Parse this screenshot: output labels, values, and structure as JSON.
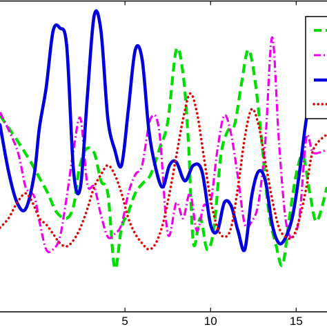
{
  "chart_data": {
    "type": "line",
    "xlim": [
      -2.3,
      16.8
    ],
    "ylim": [
      0,
      1
    ],
    "grid": false,
    "legend_position": "top-right",
    "x_ticks": [
      {
        "value": 5,
        "label": "5"
      },
      {
        "value": 10,
        "label": "10"
      },
      {
        "value": 15,
        "label": "15"
      }
    ],
    "series": [
      {
        "style": "dashed",
        "color": "#00dd00",
        "x": [
          -2.3,
          -1.3,
          -0.5,
          0,
          0.5,
          1,
          1.6,
          2,
          2.3,
          2.7,
          3.2,
          3.6,
          4,
          4.4,
          4.8,
          5.2,
          5.6,
          6,
          6.5,
          7,
          7.5,
          8,
          8.4,
          8.7,
          9,
          9.4,
          9.8,
          10.2,
          10.6,
          11,
          11.4,
          11.8,
          12.2,
          12.6,
          13,
          13.4,
          13.8,
          14.2,
          14.6,
          15,
          15.4,
          15.8,
          16.2,
          16.8
        ],
        "y": [
          0.63,
          0.55,
          0.48,
          0.43,
          0.38,
          0.32,
          0.3,
          0.34,
          0.45,
          0.52,
          0.51,
          0.42,
          0.38,
          0.14,
          0.27,
          0.32,
          0.38,
          0.41,
          0.44,
          0.52,
          0.61,
          0.84,
          0.76,
          0.55,
          0.22,
          0.3,
          0.2,
          0.27,
          0.5,
          0.58,
          0.6,
          0.73,
          0.84,
          0.74,
          0.54,
          0.32,
          0.22,
          0.15,
          0.3,
          0.44,
          0.5,
          0.38,
          0.29,
          0.4
        ]
      },
      {
        "style": "dash-dot",
        "color": "#ee00ee",
        "x": [
          -2.3,
          -1.3,
          -0.8,
          -0.3,
          0,
          0.4,
          0.8,
          1.2,
          1.6,
          2,
          2.4,
          2.8,
          3.2,
          3.6,
          4,
          4.4,
          4.8,
          5.2,
          5.6,
          6,
          6.5,
          7,
          7.5,
          8,
          8.4,
          8.8,
          9.2,
          9.6,
          10,
          10.4,
          10.8,
          11.2,
          11.6,
          12,
          12.4,
          12.8,
          13.2,
          13.6,
          14,
          14.4,
          14.8,
          15.2,
          15.6,
          16,
          16.8
        ],
        "y": [
          0.64,
          0.52,
          0.4,
          0.37,
          0.29,
          0.2,
          0.2,
          0.24,
          0.37,
          0.52,
          0.62,
          0.41,
          0.4,
          0.31,
          0.24,
          0.25,
          0.28,
          0.38,
          0.44,
          0.47,
          0.62,
          0.58,
          0.25,
          0.35,
          0.3,
          0.38,
          0.26,
          0.34,
          0.35,
          0.52,
          0.63,
          0.57,
          0.43,
          0.28,
          0.29,
          0.35,
          0.55,
          0.88,
          0.54,
          0.29,
          0.24,
          0.31,
          0.56,
          0.51,
          0.52
        ]
      },
      {
        "style": "solid",
        "color": "#0000dd",
        "x": [
          -2.3,
          -1.8,
          -1.3,
          -0.8,
          -0.3,
          0,
          0.4,
          0.8,
          1.2,
          1.6,
          2.0,
          2.4,
          2.8,
          3.2,
          3.6,
          4.0,
          4.4,
          4.8,
          5.2,
          5.6,
          6.0,
          6.4,
          6.8,
          7.2,
          7.6,
          8,
          8.5,
          9,
          9.5,
          10,
          10.4,
          10.8,
          11.2,
          11.6,
          12,
          12.4,
          12.8,
          13.2,
          13.6,
          14,
          14.4,
          14.8,
          15.2,
          15.6,
          16,
          16.8
        ],
        "y": [
          0.6,
          0.45,
          0.35,
          0.33,
          0.44,
          0.59,
          0.72,
          0.9,
          0.91,
          0.85,
          0.45,
          0.4,
          0.69,
          0.95,
          0.9,
          0.62,
          0.52,
          0.47,
          0.65,
          0.84,
          0.81,
          0.58,
          0.46,
          0.4,
          0.47,
          0.48,
          0.42,
          0.47,
          0.45,
          0.28,
          0.26,
          0.35,
          0.34,
          0.26,
          0.2,
          0.37,
          0.45,
          0.42,
          0.28,
          0.22,
          0.24,
          0.31,
          0.45,
          0.62,
          0.71,
          0.8
        ]
      },
      {
        "style": "dotted",
        "color": "#dd0000",
        "x": [
          -2.3,
          -1.8,
          -1.3,
          -0.8,
          -0.4,
          0,
          0.4,
          0.8,
          1.2,
          1.6,
          2.0,
          2.4,
          2.8,
          3.2,
          3.6,
          4.0,
          4.4,
          4.8,
          5.2,
          5.6,
          6,
          6.4,
          6.8,
          7.2,
          7.6,
          8,
          8.4,
          8.8,
          9.2,
          9.6,
          10,
          10.4,
          10.8,
          11.2,
          11.6,
          12,
          12.4,
          12.8,
          13.2,
          13.6,
          14,
          14.4,
          14.8,
          15.2,
          15.6,
          16,
          16.8
        ],
        "y": [
          0.27,
          0.3,
          0.35,
          0.38,
          0.35,
          0.3,
          0.28,
          0.25,
          0.22,
          0.21,
          0.23,
          0.27,
          0.33,
          0.4,
          0.44,
          0.47,
          0.44,
          0.38,
          0.3,
          0.25,
          0.22,
          0.2,
          0.22,
          0.28,
          0.38,
          0.5,
          0.62,
          0.7,
          0.64,
          0.5,
          0.36,
          0.27,
          0.24,
          0.27,
          0.4,
          0.56,
          0.65,
          0.6,
          0.48,
          0.36,
          0.27,
          0.24,
          0.24,
          0.3,
          0.4,
          0.52,
          0.57
        ]
      }
    ]
  }
}
